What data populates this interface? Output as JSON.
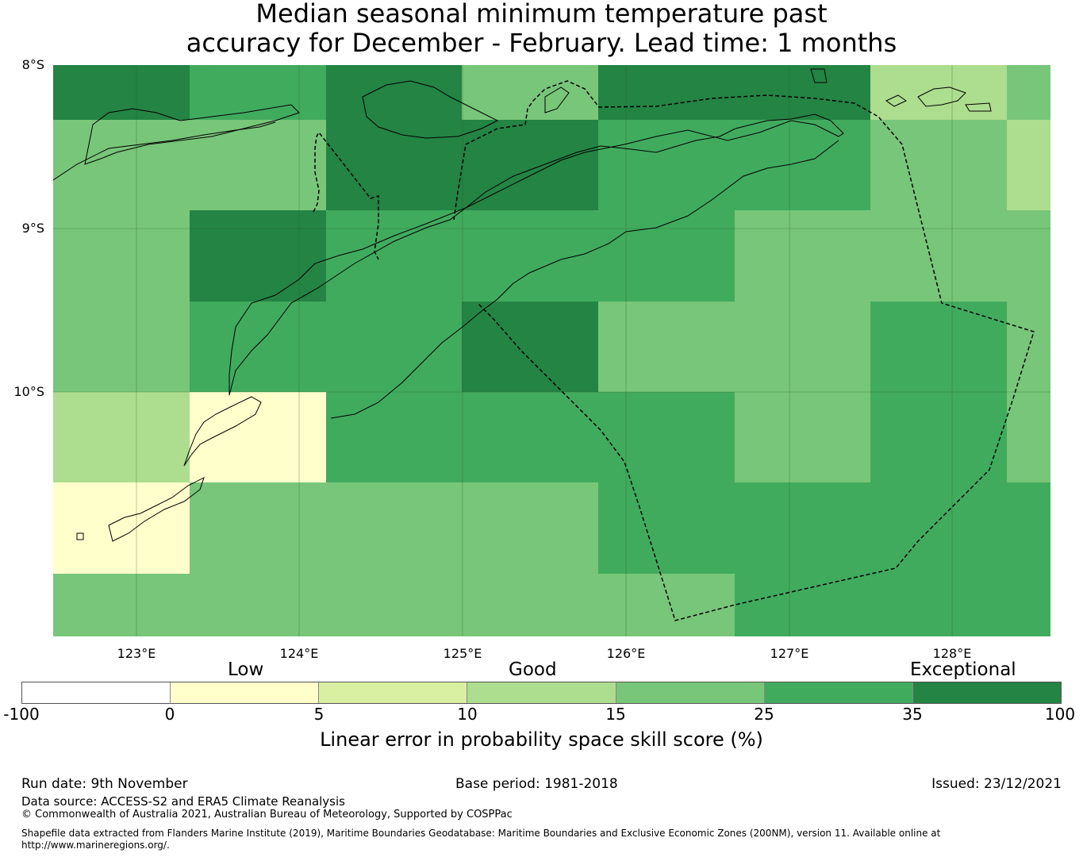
{
  "title": {
    "line1": "Median seasonal minimum temperature past",
    "line2": "accuracy for December - February. Lead time: 1 months"
  },
  "map": {
    "lat_labels": [
      "8°S",
      "9°S",
      "10°S"
    ],
    "lon_labels": [
      "123°E",
      "124°E",
      "125°E",
      "126°E",
      "127°E",
      "128°E"
    ],
    "grid_skill_classes": [
      [
        6,
        5,
        6,
        4,
        6,
        6,
        3,
        4
      ],
      [
        4,
        4,
        6,
        6,
        5,
        5,
        4,
        3
      ],
      [
        4,
        6,
        5,
        5,
        5,
        4,
        4,
        4
      ],
      [
        4,
        5,
        5,
        6,
        4,
        4,
        5,
        4
      ],
      [
        3,
        1,
        5,
        5,
        5,
        4,
        5,
        4
      ],
      [
        1,
        4,
        4,
        4,
        5,
        5,
        5,
        5
      ],
      [
        4,
        4,
        4,
        4,
        4,
        5,
        5,
        5
      ]
    ]
  },
  "legend": {
    "categories": [
      "Low",
      "Good",
      "Exceptional"
    ],
    "ticks": [
      "-100",
      "0",
      "5",
      "10",
      "15",
      "25",
      "35",
      "100"
    ],
    "colors": [
      "#ffffff",
      "#ffffcc",
      "#d9f0a3",
      "#addd8e",
      "#78c679",
      "#41ab5d",
      "#238443"
    ],
    "label": "Linear error in probability space skill score (%)"
  },
  "footer": {
    "run_date": "Run date: 9th November",
    "base_period": "Base period: 1981-2018",
    "issued": "Issued: 23/12/2021",
    "data_source": "Data source: ACCESS-S2 and ERA5 Climate Reanalysis",
    "copyright": "© Commonwealth of Australia 2021, Australian Bureau of Meteorology, Supported by COSPPac",
    "shapefile_line1": "Shapefile data extracted from Flanders Marine Institute (2019), Maritime Boundaries Geodatabase: Maritime Boundaries and Exclusive Economic Zones (200NM), version 11. Available online at",
    "shapefile_line2": "http://www.marineregions.org/."
  }
}
